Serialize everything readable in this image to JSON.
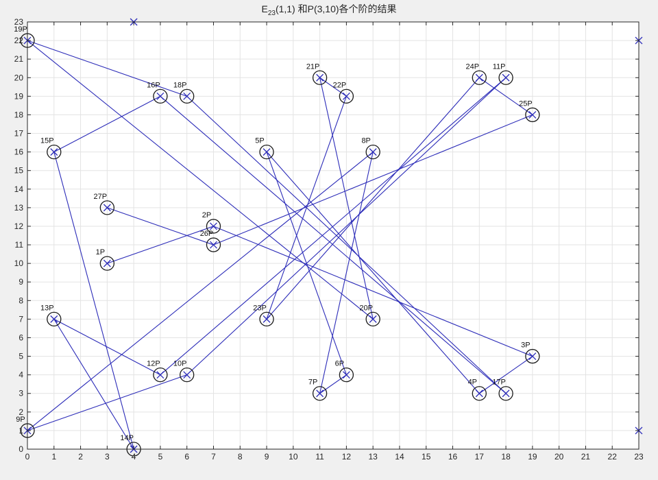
{
  "chart_data": {
    "type": "scatter",
    "title": "E",
    "title_sub": "23",
    "title_rest": "(1,1) 和P(3,10)各个阶的结果",
    "xlim": [
      0,
      23
    ],
    "ylim": [
      0,
      23
    ],
    "grid": true,
    "xticks": [
      0,
      1,
      2,
      3,
      4,
      5,
      6,
      7,
      8,
      9,
      10,
      11,
      12,
      13,
      14,
      15,
      16,
      17,
      18,
      19,
      20,
      21,
      22,
      23
    ],
    "yticks": [
      0,
      1,
      2,
      3,
      4,
      5,
      6,
      7,
      8,
      9,
      10,
      11,
      12,
      13,
      14,
      15,
      16,
      17,
      18,
      19,
      20,
      21,
      22,
      23
    ],
    "line_color": "#2b2bb8",
    "marker_color": "#2b2bb8",
    "circle_color": "#1a1a1a",
    "points": [
      {
        "label": "1P",
        "x": 3,
        "y": 10
      },
      {
        "label": "2P",
        "x": 7,
        "y": 12
      },
      {
        "label": "3P",
        "x": 19,
        "y": 5
      },
      {
        "label": "4P",
        "x": 17,
        "y": 3
      },
      {
        "label": "5P",
        "x": 9,
        "y": 16
      },
      {
        "label": "6P",
        "x": 12,
        "y": 4
      },
      {
        "label": "7P",
        "x": 11,
        "y": 3
      },
      {
        "label": "8P",
        "x": 13,
        "y": 16
      },
      {
        "label": "9P",
        "x": 0,
        "y": 1
      },
      {
        "label": "10P",
        "x": 6,
        "y": 4
      },
      {
        "label": "11P",
        "x": 18,
        "y": 20
      },
      {
        "label": "12P",
        "x": 5,
        "y": 4
      },
      {
        "label": "13P",
        "x": 1,
        "y": 7
      },
      {
        "label": "14P",
        "x": 4,
        "y": 0
      },
      {
        "label": "15P",
        "x": 1,
        "y": 16
      },
      {
        "label": "16P",
        "x": 5,
        "y": 19
      },
      {
        "label": "17P",
        "x": 18,
        "y": 3
      },
      {
        "label": "18P",
        "x": 6,
        "y": 19
      },
      {
        "label": "19P",
        "x": 0,
        "y": 22
      },
      {
        "label": "20P",
        "x": 13,
        "y": 7
      },
      {
        "label": "21P",
        "x": 11,
        "y": 20
      },
      {
        "label": "22P",
        "x": 12,
        "y": 19
      },
      {
        "label": "23P",
        "x": 9,
        "y": 7
      },
      {
        "label": "24P",
        "x": 17,
        "y": 20
      },
      {
        "label": "25P",
        "x": 19,
        "y": 18
      },
      {
        "label": "26P",
        "x": 7,
        "y": 11
      },
      {
        "label": "27P",
        "x": 3,
        "y": 13
      }
    ],
    "extra_markers": [
      {
        "x": 4,
        "y": 23
      },
      {
        "x": 23,
        "y": 22
      },
      {
        "x": 23,
        "y": 1
      }
    ]
  }
}
